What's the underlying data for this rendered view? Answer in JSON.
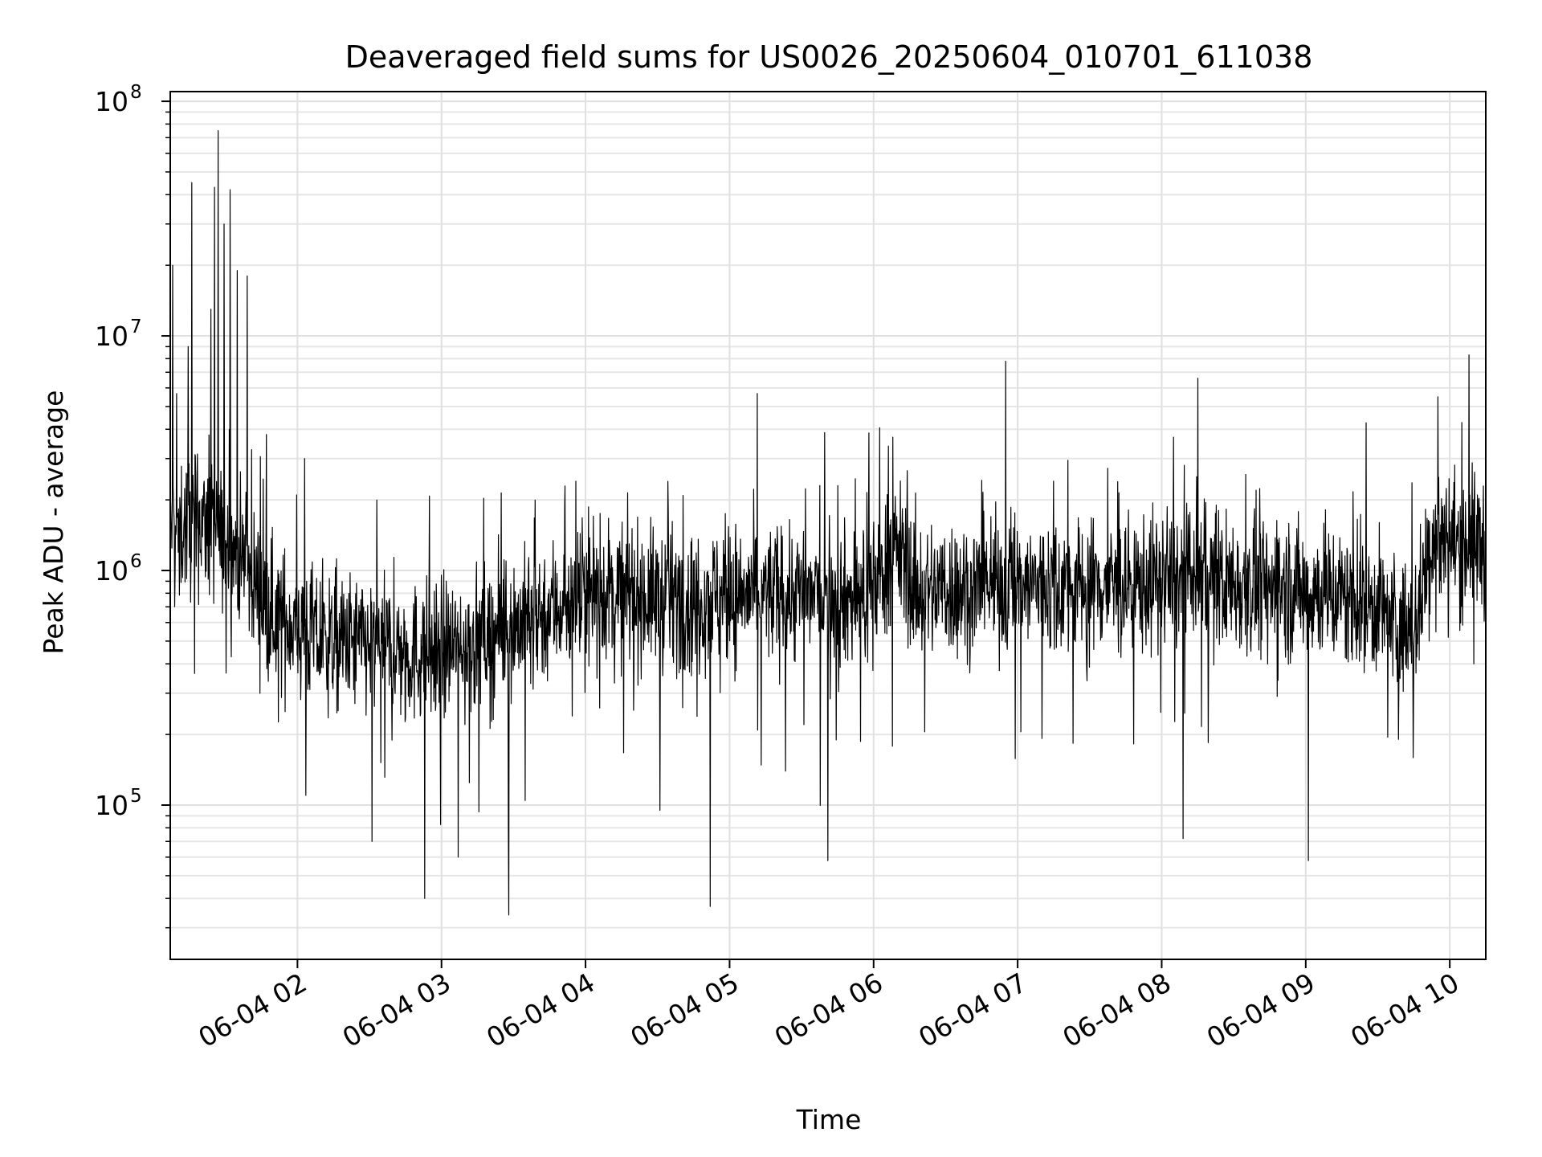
{
  "chart_data": {
    "type": "line",
    "title": "Deaveraged field sums for US0026_20250604_010701_611038",
    "xlabel": "Time",
    "ylabel": "Peak ADU - average",
    "yscale": "log",
    "ylim": [
      22000,
      110000000
    ],
    "xlim": [
      "2025-06-04 01:07:01",
      "2025-06-04 10:15:00"
    ],
    "grid": true,
    "grid_minor": true,
    "x_ticks": [
      {
        "t": "2025-06-04 02:00:00",
        "label": "06-04 02"
      },
      {
        "t": "2025-06-04 03:00:00",
        "label": "06-04 03"
      },
      {
        "t": "2025-06-04 04:00:00",
        "label": "06-04 04"
      },
      {
        "t": "2025-06-04 05:00:00",
        "label": "06-04 05"
      },
      {
        "t": "2025-06-04 06:00:00",
        "label": "06-04 06"
      },
      {
        "t": "2025-06-04 07:00:00",
        "label": "06-04 07"
      },
      {
        "t": "2025-06-04 08:00:00",
        "label": "06-04 08"
      },
      {
        "t": "2025-06-04 09:00:00",
        "label": "06-04 09"
      },
      {
        "t": "2025-06-04 10:00:00",
        "label": "06-04 10"
      }
    ],
    "y_ticks": [
      {
        "v": 100000,
        "base": "10",
        "exp": "5"
      },
      {
        "v": 1000000,
        "base": "10",
        "exp": "6"
      },
      {
        "v": 10000000,
        "base": "10",
        "exp": "7"
      },
      {
        "v": 100000000,
        "base": "10",
        "exp": "8"
      }
    ],
    "series": [
      {
        "color": "#000000",
        "baseline": [
          [
            "2025-06-04 01:07:01",
            1500000
          ],
          [
            "2025-06-04 01:20:00",
            1600000
          ],
          [
            "2025-06-04 01:35:00",
            1200000
          ],
          [
            "2025-06-04 01:50:00",
            650000
          ],
          [
            "2025-06-04 02:10:00",
            500000
          ],
          [
            "2025-06-04 02:30:00",
            480000
          ],
          [
            "2025-06-04 02:50:00",
            440000
          ],
          [
            "2025-06-04 03:10:00",
            480000
          ],
          [
            "2025-06-04 03:30:00",
            580000
          ],
          [
            "2025-06-04 03:50:00",
            720000
          ],
          [
            "2025-06-04 04:10:00",
            820000
          ],
          [
            "2025-06-04 04:30:00",
            760000
          ],
          [
            "2025-06-04 05:00:00",
            780000
          ],
          [
            "2025-06-04 05:30:00",
            800000
          ],
          [
            "2025-06-04 05:55:00",
            760000
          ],
          [
            "2025-06-04 06:10:00",
            1250000
          ],
          [
            "2025-06-04 06:18:00",
            820000
          ],
          [
            "2025-06-04 06:45:00",
            850000
          ],
          [
            "2025-06-04 07:15:00",
            870000
          ],
          [
            "2025-06-04 07:45:00",
            860000
          ],
          [
            "2025-06-04 08:10:00",
            920000
          ],
          [
            "2025-06-04 08:40:00",
            860000
          ],
          [
            "2025-06-04 09:10:00",
            800000
          ],
          [
            "2025-06-04 09:30:00",
            700000
          ],
          [
            "2025-06-04 09:45:00",
            520000
          ],
          [
            "2025-06-04 09:52:00",
            1350000
          ],
          [
            "2025-06-04 10:15:00",
            1300000
          ]
        ],
        "spikes": [
          [
            "2025-06-04 01:08:00",
            20000000
          ],
          [
            "2025-06-04 01:14:30",
            9000000
          ],
          [
            "2025-06-04 01:16:00",
            45000000
          ],
          [
            "2025-06-04 01:24:00",
            13000000
          ],
          [
            "2025-06-04 01:25:30",
            43000000
          ],
          [
            "2025-06-04 01:27:00",
            75000000
          ],
          [
            "2025-06-04 01:29:30",
            30000000
          ],
          [
            "2025-06-04 01:32:00",
            42000000
          ],
          [
            "2025-06-04 01:35:00",
            19000000
          ],
          [
            "2025-06-04 01:39:00",
            18000000
          ],
          [
            "2025-06-04 01:47:00",
            3800000
          ],
          [
            "2025-06-04 02:03:00",
            3000000
          ],
          [
            "2025-06-04 05:45:00",
            2300000
          ],
          [
            "2025-06-04 06:08:00",
            3700000
          ],
          [
            "2025-06-04 06:55:00",
            7800000
          ],
          [
            "2025-06-04 08:05:00",
            3700000
          ],
          [
            "2025-06-04 08:15:00",
            6600000
          ],
          [
            "2025-06-04 09:55:00",
            5500000
          ],
          [
            "2025-06-04 10:08:00",
            8300000
          ],
          [
            "2025-06-04 10:10:00",
            400000
          ],
          [
            "2025-06-04 02:03:30",
            110000
          ],
          [
            "2025-06-04 02:31:00",
            70000
          ],
          [
            "2025-06-04 02:53:00",
            40000
          ],
          [
            "2025-06-04 03:07:00",
            60000
          ],
          [
            "2025-06-04 03:28:00",
            34000
          ],
          [
            "2025-06-04 04:31:00",
            95000
          ],
          [
            "2025-06-04 04:52:00",
            37000
          ],
          [
            "2025-06-04 05:41:00",
            58000
          ],
          [
            "2025-06-04 08:09:00",
            72000
          ],
          [
            "2025-06-04 09:01:00",
            58000
          ]
        ]
      }
    ]
  }
}
